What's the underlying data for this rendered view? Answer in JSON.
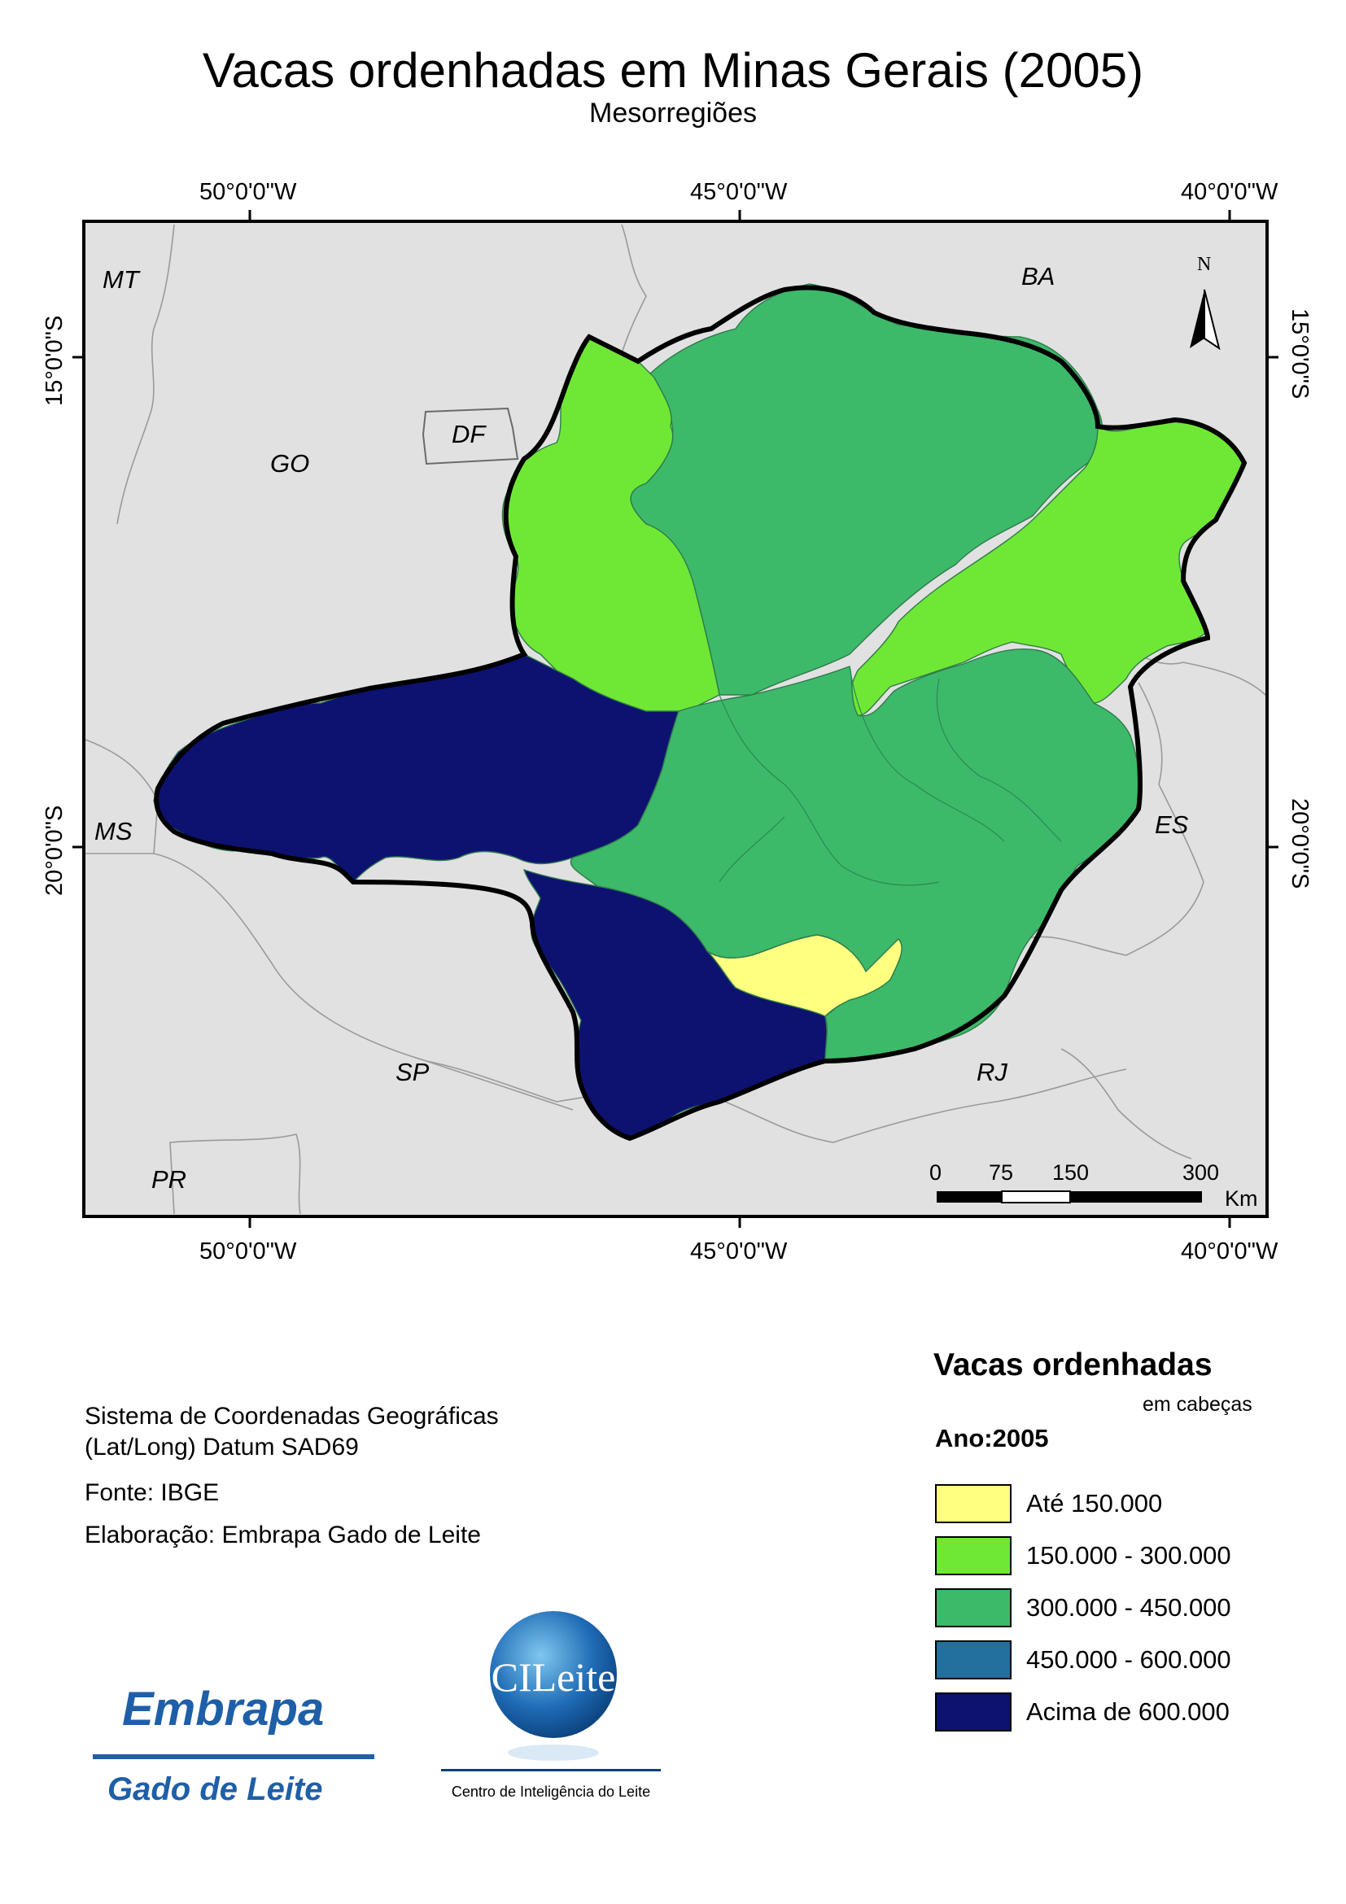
{
  "title": "Vacas ordenhadas em Minas Gerais (2005)",
  "subtitle": "Mesorregiões",
  "coords": {
    "lon_top": [
      "50°0'0\"W",
      "45°0'0\"W",
      "40°0'0\"W"
    ],
    "lon_bottom": [
      "50°0'0\"W",
      "45°0'0\"W",
      "40°0'0\"W"
    ],
    "lat_left": [
      "15°0'0\"S",
      "20°0'0\"S"
    ],
    "lat_right": [
      "15°0'0\"S",
      "20°0'0\"S"
    ]
  },
  "map": {
    "states": {
      "mt": "MT",
      "ba": "BA",
      "go": "GO",
      "df": "DF",
      "ms": "MS",
      "es": "ES",
      "sp": "SP",
      "rj": "RJ",
      "pr": "PR"
    },
    "north": "N",
    "scale": {
      "labels": [
        "0",
        "75",
        "150",
        "300"
      ],
      "unit": "Km"
    },
    "colors": {
      "background": "#e1e1e1",
      "class1": "#ffff80",
      "class2": "#6fe835",
      "class3": "#3db96a",
      "class4": "#23709e",
      "class5": "#0d1270"
    }
  },
  "info": {
    "line1": "Sistema de Coordenadas Geográficas",
    "line2": "(Lat/Long) Datum SAD69",
    "source": "Fonte: IBGE",
    "author": "Elaboração: Embrapa Gado de Leite"
  },
  "legend": {
    "title": "Vacas ordenhadas",
    "subtitle": "em cabeças",
    "year": "Ano:2005",
    "items": [
      {
        "label": "Até 150.000",
        "color": "#ffff80"
      },
      {
        "label": "150.000 - 300.000",
        "color": "#6fe835"
      },
      {
        "label": "300.000 - 450.000",
        "color": "#3db96a"
      },
      {
        "label": "450.000 - 600.000",
        "color": "#23709e"
      },
      {
        "label": "Acima de 600.000",
        "color": "#0d1270"
      }
    ]
  },
  "logos": {
    "embrapa": {
      "name": "Embrapa",
      "subname": "Gado de Leite"
    },
    "cileite": {
      "name": "CILeite",
      "subname": "Centro de Inteligência do Leite"
    }
  }
}
